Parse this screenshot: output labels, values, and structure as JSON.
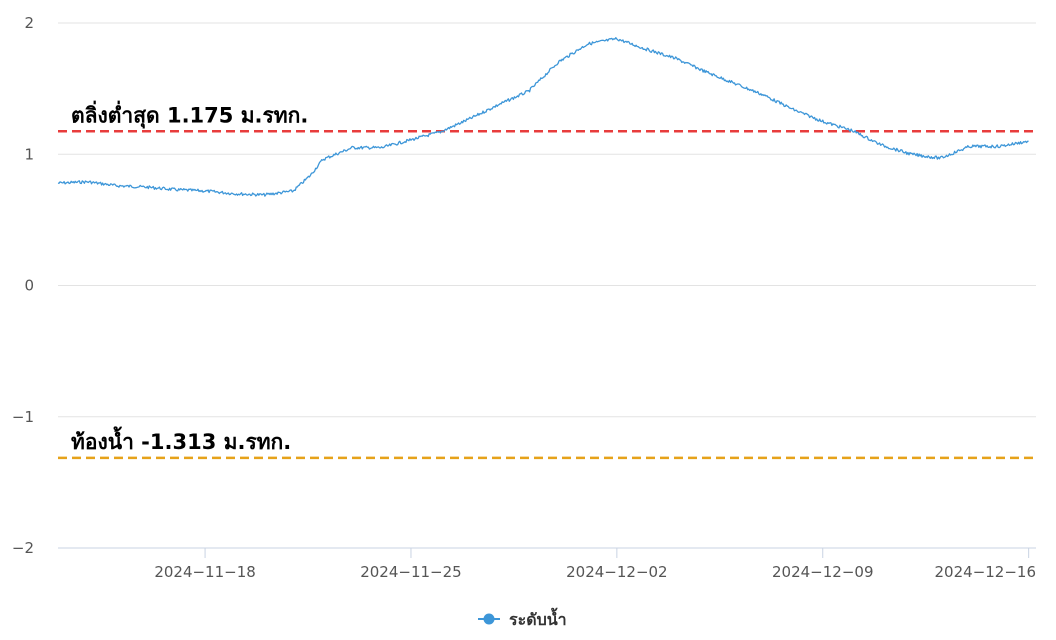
{
  "chart_data": {
    "type": "line",
    "x_type": "date",
    "xlim": [
      "2024-11-13",
      "2024-12-16T06:00"
    ],
    "ylim": [
      -2,
      2
    ],
    "y_ticks": [
      2,
      1,
      0,
      -1,
      -2
    ],
    "y_tick_labels": [
      "2",
      "1",
      "0",
      "−1",
      "−2"
    ],
    "x_ticks": [
      "2024-11-18",
      "2024-11-25",
      "2024-12-02",
      "2024-12-09",
      "2024-12-16"
    ],
    "x_tick_labels": [
      "2024−11−18",
      "2024−11−25",
      "2024−12−02",
      "2024−12−09",
      "2024−12−16"
    ],
    "grid": true,
    "legend": {
      "position": "bottom-center"
    },
    "series": [
      {
        "name": "ระดับน้ำ",
        "color": "#3d96d8",
        "x": [
          "2024-11-13",
          "2024-11-14",
          "2024-11-15",
          "2024-11-16",
          "2024-11-17",
          "2024-11-18",
          "2024-11-19",
          "2024-11-20",
          "2024-11-21",
          "2024-11-21T14:00",
          "2024-11-22",
          "2024-11-23",
          "2024-11-24",
          "2024-11-25",
          "2024-11-26",
          "2024-11-27",
          "2024-11-28",
          "2024-11-29",
          "2024-11-30",
          "2024-12-01",
          "2024-12-02",
          "2024-12-03",
          "2024-12-04",
          "2024-12-05",
          "2024-12-06",
          "2024-12-07",
          "2024-12-08",
          "2024-12-09",
          "2024-12-10",
          "2024-12-11",
          "2024-12-12",
          "2024-12-13",
          "2024-12-14",
          "2024-12-15",
          "2024-12-16"
        ],
        "y": [
          0.78,
          0.79,
          0.76,
          0.75,
          0.73,
          0.72,
          0.7,
          0.69,
          0.72,
          0.84,
          0.96,
          1.05,
          1.05,
          1.11,
          1.17,
          1.27,
          1.38,
          1.48,
          1.7,
          1.84,
          1.88,
          1.8,
          1.73,
          1.63,
          1.54,
          1.45,
          1.34,
          1.25,
          1.18,
          1.07,
          1.0,
          0.97,
          1.06,
          1.06,
          1.1
        ]
      }
    ],
    "reference_lines": [
      {
        "label": "ตลิ่งต่ำสุด 1.175 ม.รทก.",
        "value": 1.175,
        "color": "#e83c3c"
      },
      {
        "label": "ท้องน้ำ -1.313 ม.รทก.",
        "value": -1.313,
        "color": "#e6a21a"
      }
    ]
  }
}
